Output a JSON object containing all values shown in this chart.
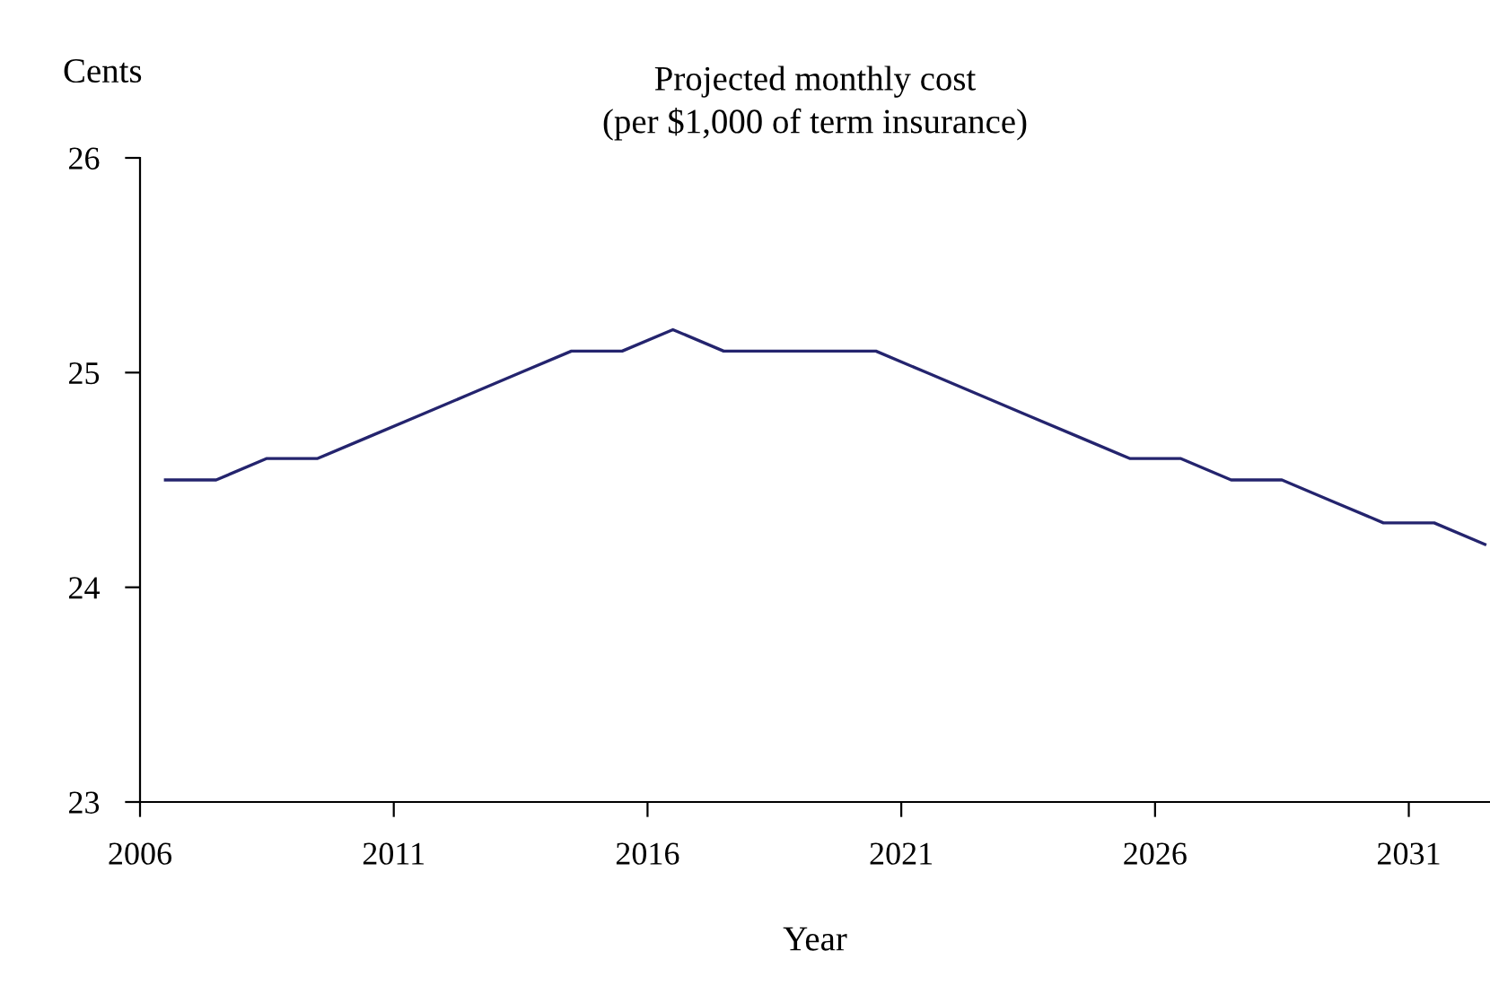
{
  "chart_data": {
    "type": "line",
    "title": "Projected monthly cost\n(per $1,000 of term insurance)",
    "ylabel": "Cents",
    "xlabel": "Year",
    "x": [
      2006.5,
      2007.5,
      2008.5,
      2009.5,
      2010.5,
      2011.5,
      2012.5,
      2013.5,
      2014.5,
      2015.5,
      2016.5,
      2017.5,
      2018.5,
      2019.5,
      2020.5,
      2021.5,
      2022.5,
      2023.5,
      2024.5,
      2025.5,
      2026.5,
      2027.5,
      2028.5,
      2029.5,
      2030.5,
      2031.5,
      2032.5
    ],
    "series": [
      {
        "color": "#24246e",
        "values": [
          24.5,
          24.5,
          24.6,
          24.6,
          24.7,
          24.8,
          24.9,
          25.0,
          25.1,
          25.1,
          25.2,
          25.1,
          25.1,
          25.1,
          25.1,
          25.0,
          24.9,
          24.8,
          24.7,
          24.6,
          24.6,
          24.5,
          24.5,
          24.4,
          24.3,
          24.3,
          24.2
        ]
      }
    ],
    "xlim": [
      2006,
      2032.6
    ],
    "xticks": [
      2006,
      2011,
      2016,
      2021,
      2026,
      2031
    ],
    "ylim": [
      23,
      26
    ],
    "yticks": [
      23,
      24,
      25,
      26
    ],
    "grid": false,
    "legend": false,
    "marker": "none",
    "line_style": "solid"
  }
}
